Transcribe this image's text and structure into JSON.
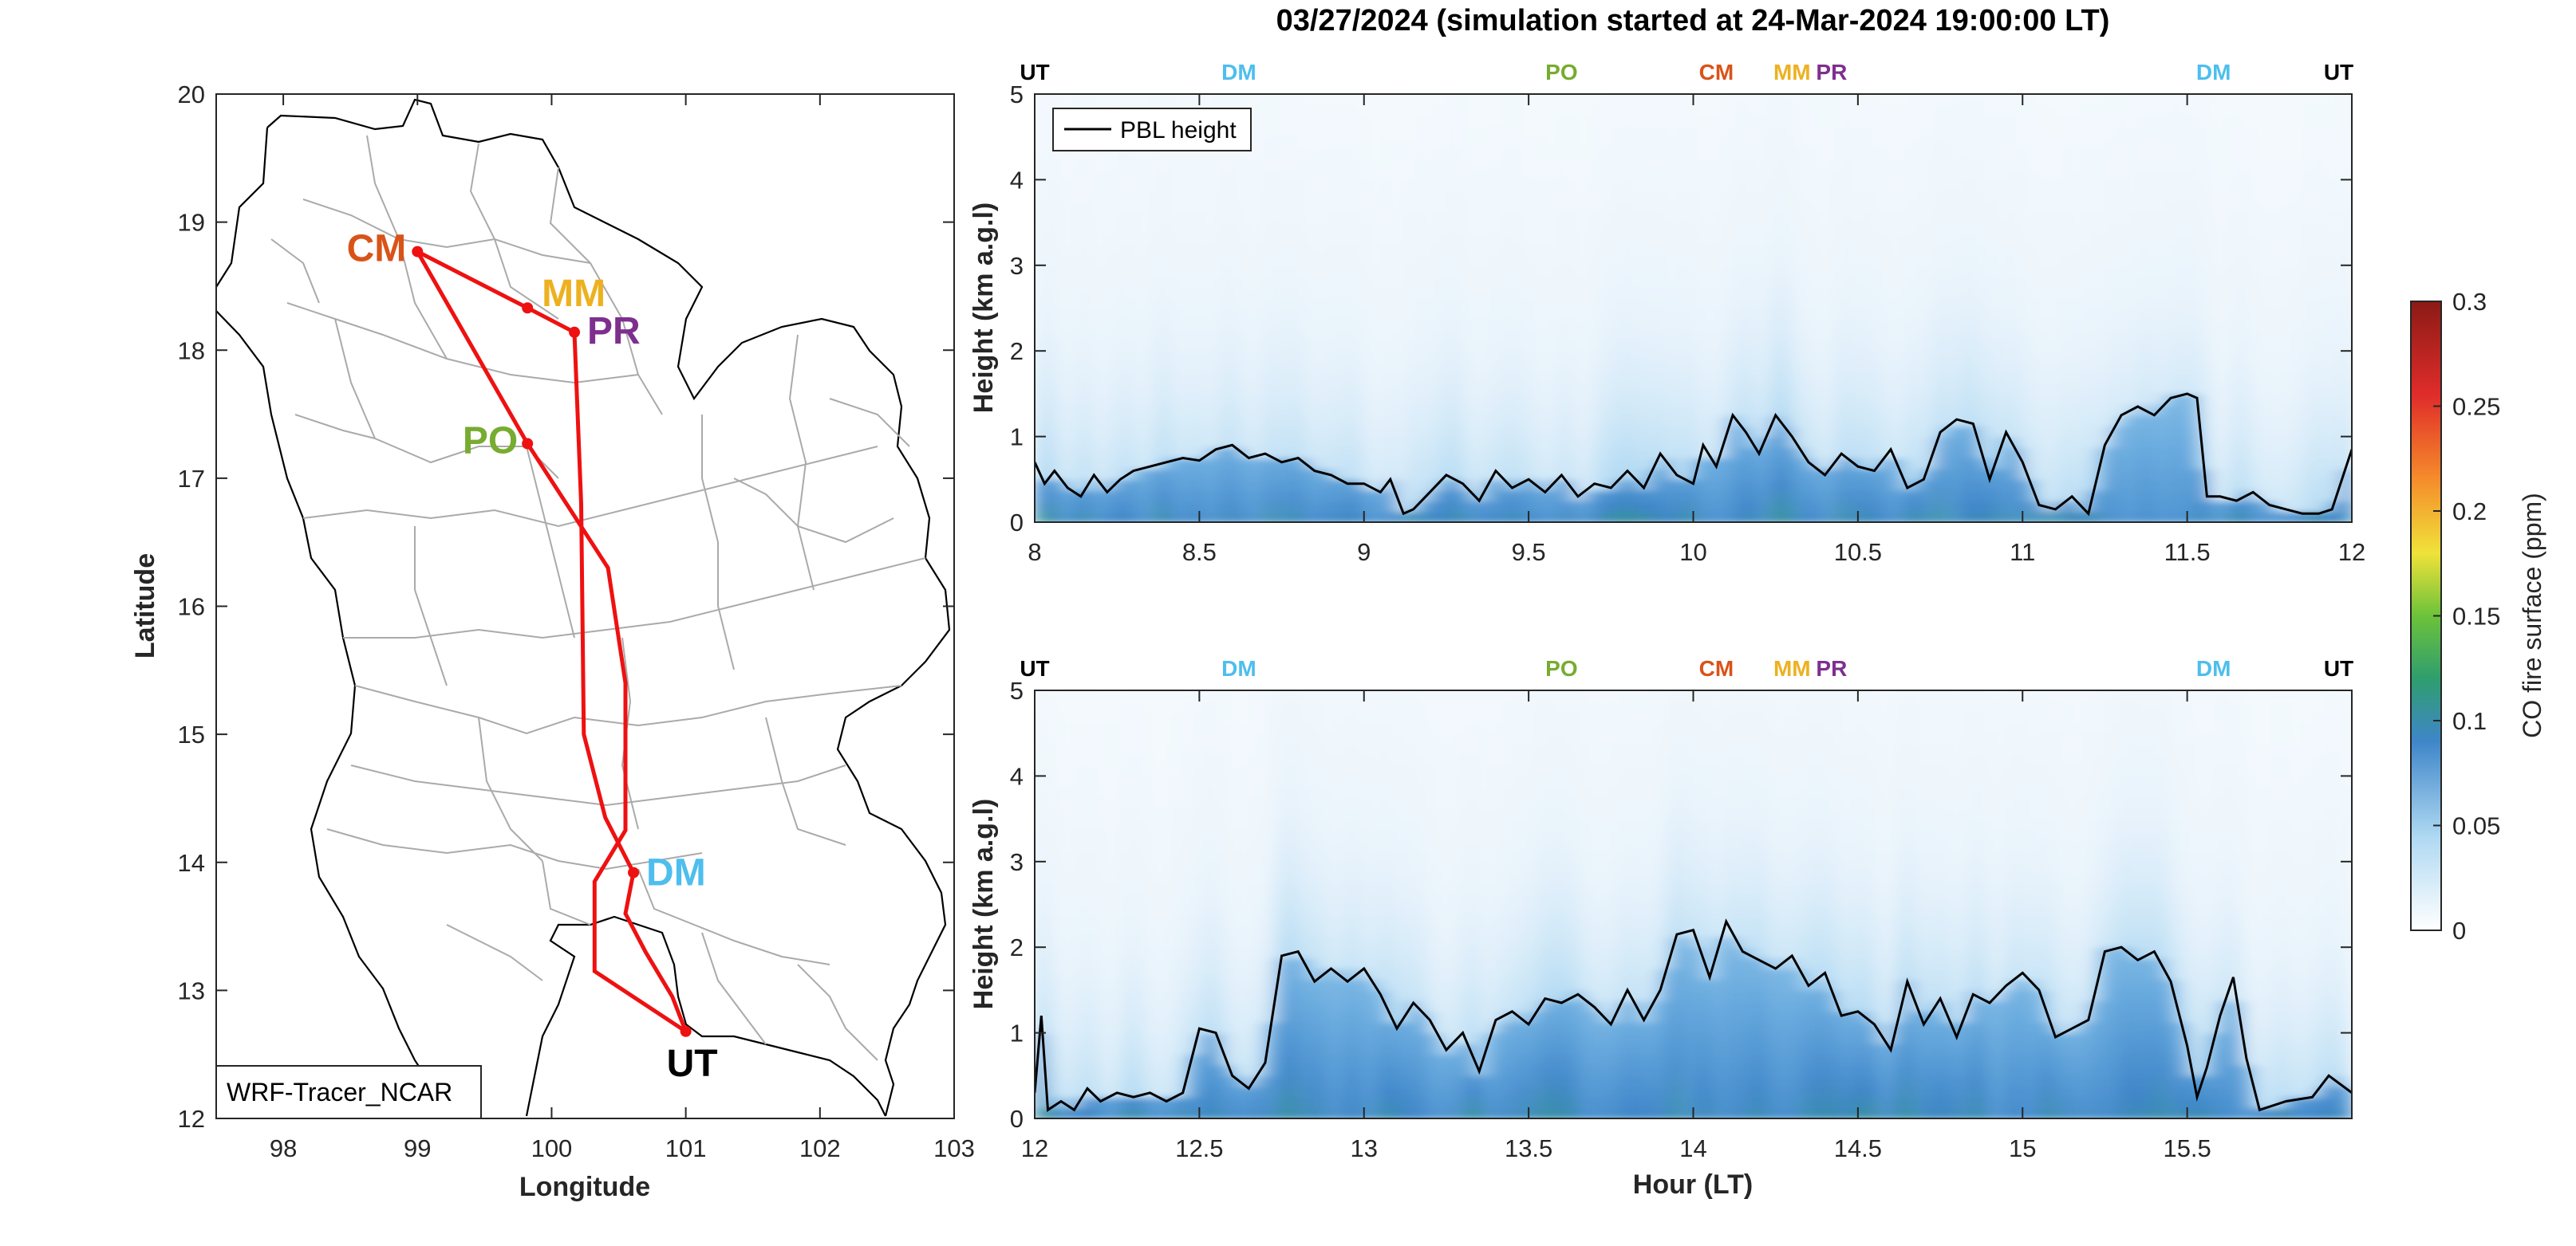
{
  "title": "03/27/2024 (simulation started at 24-Mar-2024 19:00:00 LT)",
  "colors": {
    "CM": "#D95319",
    "MM": "#EDB120",
    "PR": "#7E2F8E",
    "PO": "#77AC30",
    "DM": "#4DBEEE",
    "UT": "#000000",
    "route": "#EE1111",
    "pbl": "#000000",
    "boundary": "#AAAAAA"
  },
  "map": {
    "xlabel": "Longitude",
    "ylabel": "Latitude",
    "xlim": [
      97.5,
      103
    ],
    "ylim": [
      12,
      20
    ],
    "xticks": [
      "98",
      "99",
      "100",
      "101",
      "102",
      "103"
    ],
    "yticks": [
      "12",
      "13",
      "14",
      "15",
      "16",
      "17",
      "18",
      "19",
      "20"
    ],
    "legend_text": "WRF-Tracer_NCAR",
    "sites": [
      {
        "code": "CM",
        "lon": 99.0,
        "lat": 18.77
      },
      {
        "code": "MM",
        "lon": 99.82,
        "lat": 18.33
      },
      {
        "code": "PR",
        "lon": 100.17,
        "lat": 18.14
      },
      {
        "code": "PO",
        "lon": 99.82,
        "lat": 17.27
      },
      {
        "code": "DM",
        "lon": 100.61,
        "lat": 13.92
      },
      {
        "code": "UT",
        "lon": 101.0,
        "lat": 12.68
      }
    ],
    "route_out": [
      [
        101.0,
        12.68
      ],
      [
        100.32,
        13.15
      ],
      [
        100.32,
        13.85
      ],
      [
        100.55,
        14.25
      ],
      [
        100.55,
        15.4
      ],
      [
        100.42,
        16.3
      ],
      [
        99.82,
        17.27
      ],
      [
        99.0,
        18.77
      ]
    ],
    "route_back": [
      [
        99.0,
        18.77
      ],
      [
        99.82,
        18.33
      ],
      [
        100.17,
        18.14
      ],
      [
        100.22,
        16.8
      ],
      [
        100.24,
        15.0
      ],
      [
        100.4,
        14.35
      ],
      [
        100.61,
        13.92
      ],
      [
        100.55,
        13.6
      ],
      [
        100.7,
        13.3
      ],
      [
        100.9,
        12.95
      ],
      [
        101.0,
        12.68
      ]
    ]
  },
  "chart_data": [
    {
      "type": "heatmap",
      "panel": "top",
      "ylabel": "Height (km a.g.l)",
      "xlim": [
        8,
        12
      ],
      "ylim": [
        0,
        5
      ],
      "xticks": [
        "8",
        "8.5",
        "9",
        "9.5",
        "10",
        "10.5",
        "11",
        "11.5",
        "12"
      ],
      "yticks": [
        "0",
        "1",
        "2",
        "3",
        "4",
        "5"
      ],
      "legend": {
        "label": "PBL height",
        "placement": "top-left"
      },
      "site_markers": [
        {
          "code": "UT",
          "hour": 8.0
        },
        {
          "code": "DM",
          "hour": 8.62
        },
        {
          "code": "PO",
          "hour": 9.6
        },
        {
          "code": "CM",
          "hour": 10.07
        },
        {
          "code": "MM",
          "hour": 10.3
        },
        {
          "code": "PR",
          "hour": 10.42
        },
        {
          "code": "DM",
          "hour": 11.58
        },
        {
          "code": "UT",
          "hour": 11.96
        }
      ],
      "pbl_series": {
        "name": "PBL height",
        "x": [
          8.0,
          8.03,
          8.06,
          8.1,
          8.14,
          8.18,
          8.22,
          8.26,
          8.3,
          8.35,
          8.4,
          8.45,
          8.5,
          8.55,
          8.6,
          8.65,
          8.7,
          8.75,
          8.8,
          8.85,
          8.9,
          8.95,
          9.0,
          9.05,
          9.08,
          9.12,
          9.15,
          9.2,
          9.25,
          9.3,
          9.35,
          9.4,
          9.45,
          9.5,
          9.55,
          9.6,
          9.65,
          9.7,
          9.75,
          9.8,
          9.85,
          9.9,
          9.95,
          10.0,
          10.03,
          10.07,
          10.12,
          10.16,
          10.2,
          10.25,
          10.3,
          10.35,
          10.4,
          10.45,
          10.5,
          10.55,
          10.6,
          10.65,
          10.7,
          10.75,
          10.8,
          10.85,
          10.9,
          10.95,
          11.0,
          11.05,
          11.1,
          11.15,
          11.2,
          11.25,
          11.3,
          11.35,
          11.4,
          11.45,
          11.5,
          11.53,
          11.56,
          11.6,
          11.65,
          11.7,
          11.75,
          11.8,
          11.85,
          11.9,
          11.94,
          12.0
        ],
        "y": [
          0.7,
          0.45,
          0.6,
          0.4,
          0.3,
          0.55,
          0.35,
          0.5,
          0.6,
          0.65,
          0.7,
          0.75,
          0.72,
          0.85,
          0.9,
          0.75,
          0.8,
          0.7,
          0.75,
          0.6,
          0.55,
          0.45,
          0.45,
          0.35,
          0.5,
          0.1,
          0.15,
          0.35,
          0.55,
          0.45,
          0.25,
          0.6,
          0.4,
          0.5,
          0.35,
          0.55,
          0.3,
          0.45,
          0.4,
          0.6,
          0.4,
          0.8,
          0.55,
          0.45,
          0.9,
          0.65,
          1.25,
          1.05,
          0.8,
          1.25,
          1.0,
          0.7,
          0.55,
          0.8,
          0.65,
          0.6,
          0.85,
          0.4,
          0.5,
          1.05,
          1.2,
          1.15,
          0.5,
          1.05,
          0.7,
          0.2,
          0.15,
          0.3,
          0.1,
          0.9,
          1.25,
          1.35,
          1.25,
          1.45,
          1.5,
          1.45,
          0.3,
          0.3,
          0.25,
          0.35,
          0.2,
          0.15,
          0.1,
          0.1,
          0.15,
          0.85
        ]
      }
    },
    {
      "type": "heatmap",
      "panel": "bottom",
      "xlabel": "Hour (LT)",
      "ylabel": "Height (km a.g.l)",
      "xlim": [
        12,
        16
      ],
      "ylim": [
        0,
        5
      ],
      "xticks": [
        "12",
        "12.5",
        "13",
        "13.5",
        "14",
        "14.5",
        "15",
        "15.5"
      ],
      "yticks": [
        "0",
        "1",
        "2",
        "3",
        "4",
        "5"
      ],
      "site_markers": [
        {
          "code": "UT",
          "hour": 12.0
        },
        {
          "code": "DM",
          "hour": 12.62
        },
        {
          "code": "PO",
          "hour": 13.6
        },
        {
          "code": "CM",
          "hour": 14.07
        },
        {
          "code": "MM",
          "hour": 14.3
        },
        {
          "code": "PR",
          "hour": 14.42
        },
        {
          "code": "DM",
          "hour": 15.58
        },
        {
          "code": "UT",
          "hour": 15.96
        }
      ],
      "pbl_series": {
        "name": "PBL height",
        "x": [
          12.0,
          12.02,
          12.04,
          12.08,
          12.12,
          12.16,
          12.2,
          12.25,
          12.3,
          12.35,
          12.4,
          12.45,
          12.5,
          12.55,
          12.6,
          12.65,
          12.7,
          12.75,
          12.8,
          12.85,
          12.9,
          12.95,
          13.0,
          13.05,
          13.1,
          13.15,
          13.2,
          13.25,
          13.3,
          13.35,
          13.4,
          13.45,
          13.5,
          13.55,
          13.6,
          13.65,
          13.7,
          13.75,
          13.8,
          13.85,
          13.9,
          13.95,
          14.0,
          14.05,
          14.1,
          14.15,
          14.2,
          14.25,
          14.3,
          14.35,
          14.4,
          14.45,
          14.5,
          14.55,
          14.6,
          14.65,
          14.7,
          14.75,
          14.8,
          14.85,
          14.9,
          14.95,
          15.0,
          15.05,
          15.1,
          15.15,
          15.2,
          15.25,
          15.3,
          15.35,
          15.4,
          15.45,
          15.5,
          15.53,
          15.56,
          15.6,
          15.64,
          15.68,
          15.72,
          15.8,
          15.88,
          15.93,
          16.0
        ],
        "y": [
          0.3,
          1.2,
          0.1,
          0.2,
          0.1,
          0.35,
          0.2,
          0.3,
          0.25,
          0.3,
          0.2,
          0.3,
          1.05,
          1.0,
          0.5,
          0.35,
          0.65,
          1.9,
          1.95,
          1.6,
          1.75,
          1.6,
          1.75,
          1.45,
          1.05,
          1.35,
          1.15,
          0.8,
          1.0,
          0.55,
          1.15,
          1.25,
          1.1,
          1.4,
          1.35,
          1.45,
          1.3,
          1.1,
          1.5,
          1.15,
          1.5,
          2.15,
          2.2,
          1.65,
          2.3,
          1.95,
          1.85,
          1.75,
          1.9,
          1.55,
          1.7,
          1.2,
          1.25,
          1.1,
          0.8,
          1.6,
          1.1,
          1.4,
          0.95,
          1.45,
          1.35,
          1.55,
          1.7,
          1.5,
          0.95,
          1.05,
          1.15,
          1.95,
          2.0,
          1.85,
          1.95,
          1.6,
          0.85,
          0.25,
          0.6,
          1.2,
          1.65,
          0.7,
          0.1,
          0.2,
          0.25,
          0.5,
          0.3
        ]
      }
    }
  ],
  "colorbar": {
    "label": "CO fire surface (ppm)",
    "clim": [
      0,
      0.3
    ],
    "ticks": [
      "0",
      "0.05",
      "0.1",
      "0.15",
      "0.2",
      "0.25",
      "0.3"
    ]
  }
}
